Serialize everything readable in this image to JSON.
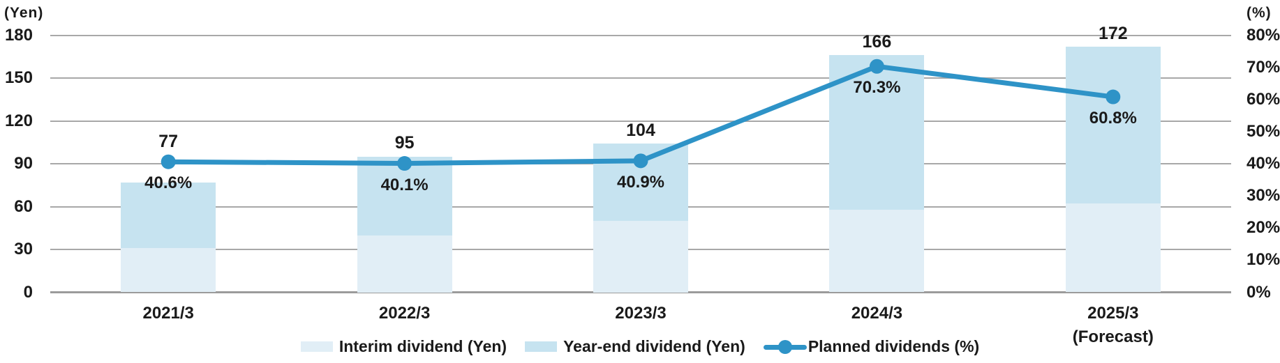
{
  "chart_data": {
    "type": "combo-stacked-bar-line",
    "title": "",
    "categories": [
      "2021/3",
      "2022/3",
      "2023/3",
      "2024/3",
      "2025/3"
    ],
    "category_note": {
      "index": 4,
      "label": "(Forecast)"
    },
    "series": [
      {
        "name": "Interim dividend (Yen)",
        "type": "bar",
        "axis": "left",
        "stack": "dividend",
        "values": [
          31,
          40,
          50,
          58,
          62
        ],
        "color": "#e1eef6"
      },
      {
        "name": "Year-end dividend (Yen)",
        "type": "bar",
        "axis": "left",
        "stack": "dividend",
        "values": [
          46,
          55,
          54,
          108,
          110
        ],
        "color": "#c6e3f0"
      },
      {
        "name": "Planned dividends (%)",
        "type": "line",
        "axis": "right",
        "values": [
          40.6,
          40.1,
          40.9,
          70.3,
          60.8
        ],
        "color": "#2e93c7"
      }
    ],
    "bar_totals": [
      77,
      95,
      104,
      166,
      172
    ],
    "bar_total_labels": [
      "77",
      "95",
      "104",
      "166",
      "172"
    ],
    "line_point_labels": [
      "40.6%",
      "40.1%",
      "40.9%",
      "70.3%",
      "60.8%"
    ],
    "left_axis": {
      "unit": "(Yen)",
      "min": 0,
      "max": 180,
      "step": 30,
      "tick_labels": [
        "0",
        "30",
        "60",
        "90",
        "120",
        "150",
        "180"
      ]
    },
    "right_axis": {
      "unit": "(%)",
      "min": 0,
      "max": 80,
      "step": 10,
      "tick_labels": [
        "0%",
        "10%",
        "20%",
        "30%",
        "40%",
        "50%",
        "60%",
        "70%",
        "80%"
      ]
    },
    "grid": true,
    "legend_position": "bottom"
  },
  "colors": {
    "gridline": "#a8a8a8",
    "axis_line": "#9b9b9b",
    "text": "#1a1a1a",
    "background": "#ffffff"
  }
}
